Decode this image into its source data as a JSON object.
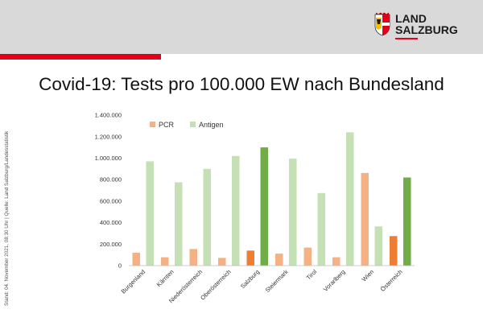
{
  "header": {
    "logo_line1": "LAND",
    "logo_line2": "SALZBURG"
  },
  "title": "Covid-19: Tests pro 100.000 EW nach Bundesland",
  "side_note": "Stand: 04. November 2021, 08:30 Uhr | Quelle: Land Salzburg/Landesstatistik",
  "colors": {
    "header_band": "#d9d9d9",
    "accent_red": "#e2001a",
    "pcr": "#f4b183",
    "pcr_highlight": "#ed7d31",
    "antigen": "#c5e0b4",
    "antigen_highlight": "#70ad47"
  },
  "chart_data": {
    "type": "bar",
    "categories": [
      "Burgenland",
      "Kärnten",
      "Niederösterreich",
      "Oberösterreich",
      "Salzburg",
      "Steiermark",
      "Tirol",
      "Vorarlberg",
      "Wien",
      "Österreich"
    ],
    "highlighted_categories": [
      "Salzburg",
      "Österreich"
    ],
    "series": [
      {
        "name": "PCR",
        "values": [
          120000,
          78000,
          155000,
          72000,
          140000,
          112000,
          168000,
          78000,
          862000,
          275000
        ]
      },
      {
        "name": "Antigen",
        "values": [
          970000,
          775000,
          900000,
          1020000,
          1100000,
          995000,
          675000,
          1240000,
          365000,
          820000
        ]
      }
    ],
    "ylim": [
      0,
      1400000
    ],
    "yticks": [
      0,
      200000,
      400000,
      600000,
      800000,
      1000000,
      1200000,
      1400000
    ],
    "ytick_labels": [
      "0",
      "200.000",
      "400.000",
      "600.000",
      "800.000",
      "1.000.000",
      "1.200.000",
      "1.400.000"
    ],
    "legend_position": "top-left",
    "grid": false,
    "xlabel": "",
    "ylabel": ""
  }
}
